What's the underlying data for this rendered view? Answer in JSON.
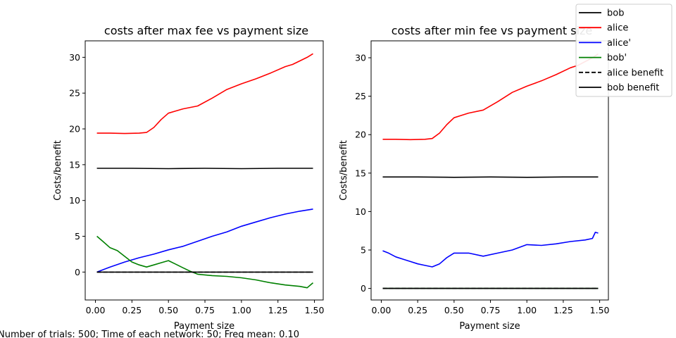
{
  "footer_note": "Number of trials: 500; Time of each network: 50; Freq mean: 0.10",
  "legend": {
    "entries": [
      {
        "label": "bob",
        "color": "#000000",
        "style": "solid"
      },
      {
        "label": "alice",
        "color": "#ff0000",
        "style": "solid"
      },
      {
        "label": "alice'",
        "color": "#0000ff",
        "style": "solid"
      },
      {
        "label": "bob'",
        "color": "#008000",
        "style": "solid"
      },
      {
        "label": "alice benefit",
        "color": "#000000",
        "style": "dashed"
      },
      {
        "label": "bob benefit",
        "color": "#000000",
        "style": "solid"
      }
    ]
  },
  "chart_data": [
    {
      "type": "line",
      "title": "costs after max fee vs payment size",
      "xlabel": "Payment size",
      "ylabel": "Costs/benefit",
      "xlim": [
        -0.07,
        1.56
      ],
      "ylim": [
        -3.9,
        32.3
      ],
      "xticks": [
        "0.00",
        "0.25",
        "0.50",
        "0.75",
        "1.00",
        "1.25",
        "1.50"
      ],
      "xtick_values": [
        0,
        0.25,
        0.5,
        0.75,
        1.0,
        1.25,
        1.5
      ],
      "yticks": [
        "0",
        "5",
        "10",
        "15",
        "20",
        "25",
        "30"
      ],
      "ytick_values": [
        0,
        5,
        10,
        15,
        20,
        25,
        30
      ],
      "grid": false,
      "series": [
        {
          "name": "bob",
          "color": "#000000",
          "style": "solid",
          "x": [
            0.01,
            0.25,
            0.5,
            0.75,
            1.0,
            1.25,
            1.49
          ],
          "y": [
            14.5,
            14.5,
            14.45,
            14.5,
            14.45,
            14.5,
            14.5
          ]
        },
        {
          "name": "alice",
          "color": "#ff0000",
          "style": "solid",
          "x": [
            0.01,
            0.1,
            0.2,
            0.3,
            0.35,
            0.4,
            0.45,
            0.5,
            0.55,
            0.6,
            0.7,
            0.8,
            0.9,
            1.0,
            1.1,
            1.2,
            1.3,
            1.35,
            1.4,
            1.45,
            1.49
          ],
          "y": [
            19.4,
            19.4,
            19.35,
            19.4,
            19.5,
            20.2,
            21.3,
            22.2,
            22.5,
            22.8,
            23.2,
            24.3,
            25.5,
            26.3,
            27.0,
            27.8,
            28.7,
            29.0,
            29.5,
            30.0,
            30.5
          ]
        },
        {
          "name": "alice'",
          "color": "#0000ff",
          "style": "solid",
          "x": [
            0.01,
            0.1,
            0.2,
            0.3,
            0.4,
            0.5,
            0.6,
            0.7,
            0.8,
            0.9,
            1.0,
            1.1,
            1.2,
            1.3,
            1.4,
            1.49
          ],
          "y": [
            0.0,
            0.7,
            1.4,
            2.0,
            2.5,
            3.1,
            3.6,
            4.3,
            5.0,
            5.6,
            6.4,
            7.0,
            7.6,
            8.1,
            8.5,
            8.8
          ]
        },
        {
          "name": "bob'",
          "color": "#008000",
          "style": "solid",
          "x": [
            0.01,
            0.05,
            0.1,
            0.15,
            0.2,
            0.25,
            0.3,
            0.35,
            0.4,
            0.45,
            0.5,
            0.55,
            0.6,
            0.65,
            0.7,
            0.75,
            0.8,
            0.9,
            1.0,
            1.1,
            1.2,
            1.3,
            1.4,
            1.45,
            1.49
          ],
          "y": [
            5.0,
            4.3,
            3.4,
            3.0,
            2.2,
            1.4,
            1.0,
            0.7,
            1.0,
            1.3,
            1.6,
            1.1,
            0.6,
            0.1,
            -0.3,
            -0.4,
            -0.5,
            -0.6,
            -0.8,
            -1.1,
            -1.5,
            -1.8,
            -2.0,
            -2.2,
            -1.5
          ]
        },
        {
          "name": "alice benefit",
          "color": "#000000",
          "style": "dashed",
          "x": [
            0.01,
            1.49
          ],
          "y": [
            0,
            0
          ]
        },
        {
          "name": "bob benefit",
          "color": "#000000",
          "style": "solid",
          "x": [
            0.01,
            1.49
          ],
          "y": [
            0,
            0
          ]
        }
      ]
    },
    {
      "type": "line",
      "title": "costs after min fee vs payment size",
      "xlabel": "Payment size",
      "ylabel": "Costs/benefit",
      "xlim": [
        -0.07,
        1.56
      ],
      "ylim": [
        -1.5,
        32.2
      ],
      "xticks": [
        "0.00",
        "0.25",
        "0.50",
        "0.75",
        "1.00",
        "1.25",
        "1.50"
      ],
      "xtick_values": [
        0,
        0.25,
        0.5,
        0.75,
        1.0,
        1.25,
        1.5
      ],
      "yticks": [
        "0",
        "5",
        "10",
        "15",
        "20",
        "25",
        "30"
      ],
      "ytick_values": [
        0,
        5,
        10,
        15,
        20,
        25,
        30
      ],
      "grid": false,
      "series": [
        {
          "name": "bob",
          "color": "#000000",
          "style": "solid",
          "x": [
            0.01,
            0.25,
            0.5,
            0.75,
            1.0,
            1.25,
            1.49
          ],
          "y": [
            14.5,
            14.5,
            14.45,
            14.5,
            14.45,
            14.5,
            14.5
          ]
        },
        {
          "name": "alice",
          "color": "#ff0000",
          "style": "solid",
          "x": [
            0.01,
            0.1,
            0.2,
            0.3,
            0.35,
            0.4,
            0.45,
            0.5,
            0.55,
            0.6,
            0.7,
            0.8,
            0.9,
            1.0,
            1.1,
            1.2,
            1.3,
            1.35,
            1.4,
            1.45,
            1.49
          ],
          "y": [
            19.4,
            19.4,
            19.35,
            19.4,
            19.5,
            20.2,
            21.3,
            22.2,
            22.5,
            22.8,
            23.2,
            24.3,
            25.5,
            26.3,
            27.0,
            27.8,
            28.7,
            29.0,
            29.5,
            30.0,
            30.5
          ]
        },
        {
          "name": "alice'",
          "color": "#0000ff",
          "style": "solid",
          "x": [
            0.01,
            0.05,
            0.1,
            0.15,
            0.2,
            0.25,
            0.3,
            0.35,
            0.4,
            0.45,
            0.5,
            0.6,
            0.7,
            0.8,
            0.9,
            1.0,
            1.1,
            1.2,
            1.3,
            1.4,
            1.45,
            1.47,
            1.49
          ],
          "y": [
            4.9,
            4.6,
            4.1,
            3.8,
            3.5,
            3.2,
            3.0,
            2.8,
            3.2,
            4.0,
            4.6,
            4.6,
            4.2,
            4.6,
            5.0,
            5.7,
            5.6,
            5.8,
            6.1,
            6.3,
            6.5,
            7.3,
            7.2
          ]
        },
        {
          "name": "bob'",
          "color": "#008000",
          "style": "solid",
          "x": [
            0.01,
            1.49
          ],
          "y": [
            0,
            0
          ]
        },
        {
          "name": "alice benefit",
          "color": "#000000",
          "style": "dashed",
          "x": [
            0.01,
            1.49
          ],
          "y": [
            0,
            0
          ]
        },
        {
          "name": "bob benefit",
          "color": "#000000",
          "style": "solid",
          "x": [
            0.01,
            1.49
          ],
          "y": [
            0,
            0
          ]
        }
      ]
    }
  ]
}
